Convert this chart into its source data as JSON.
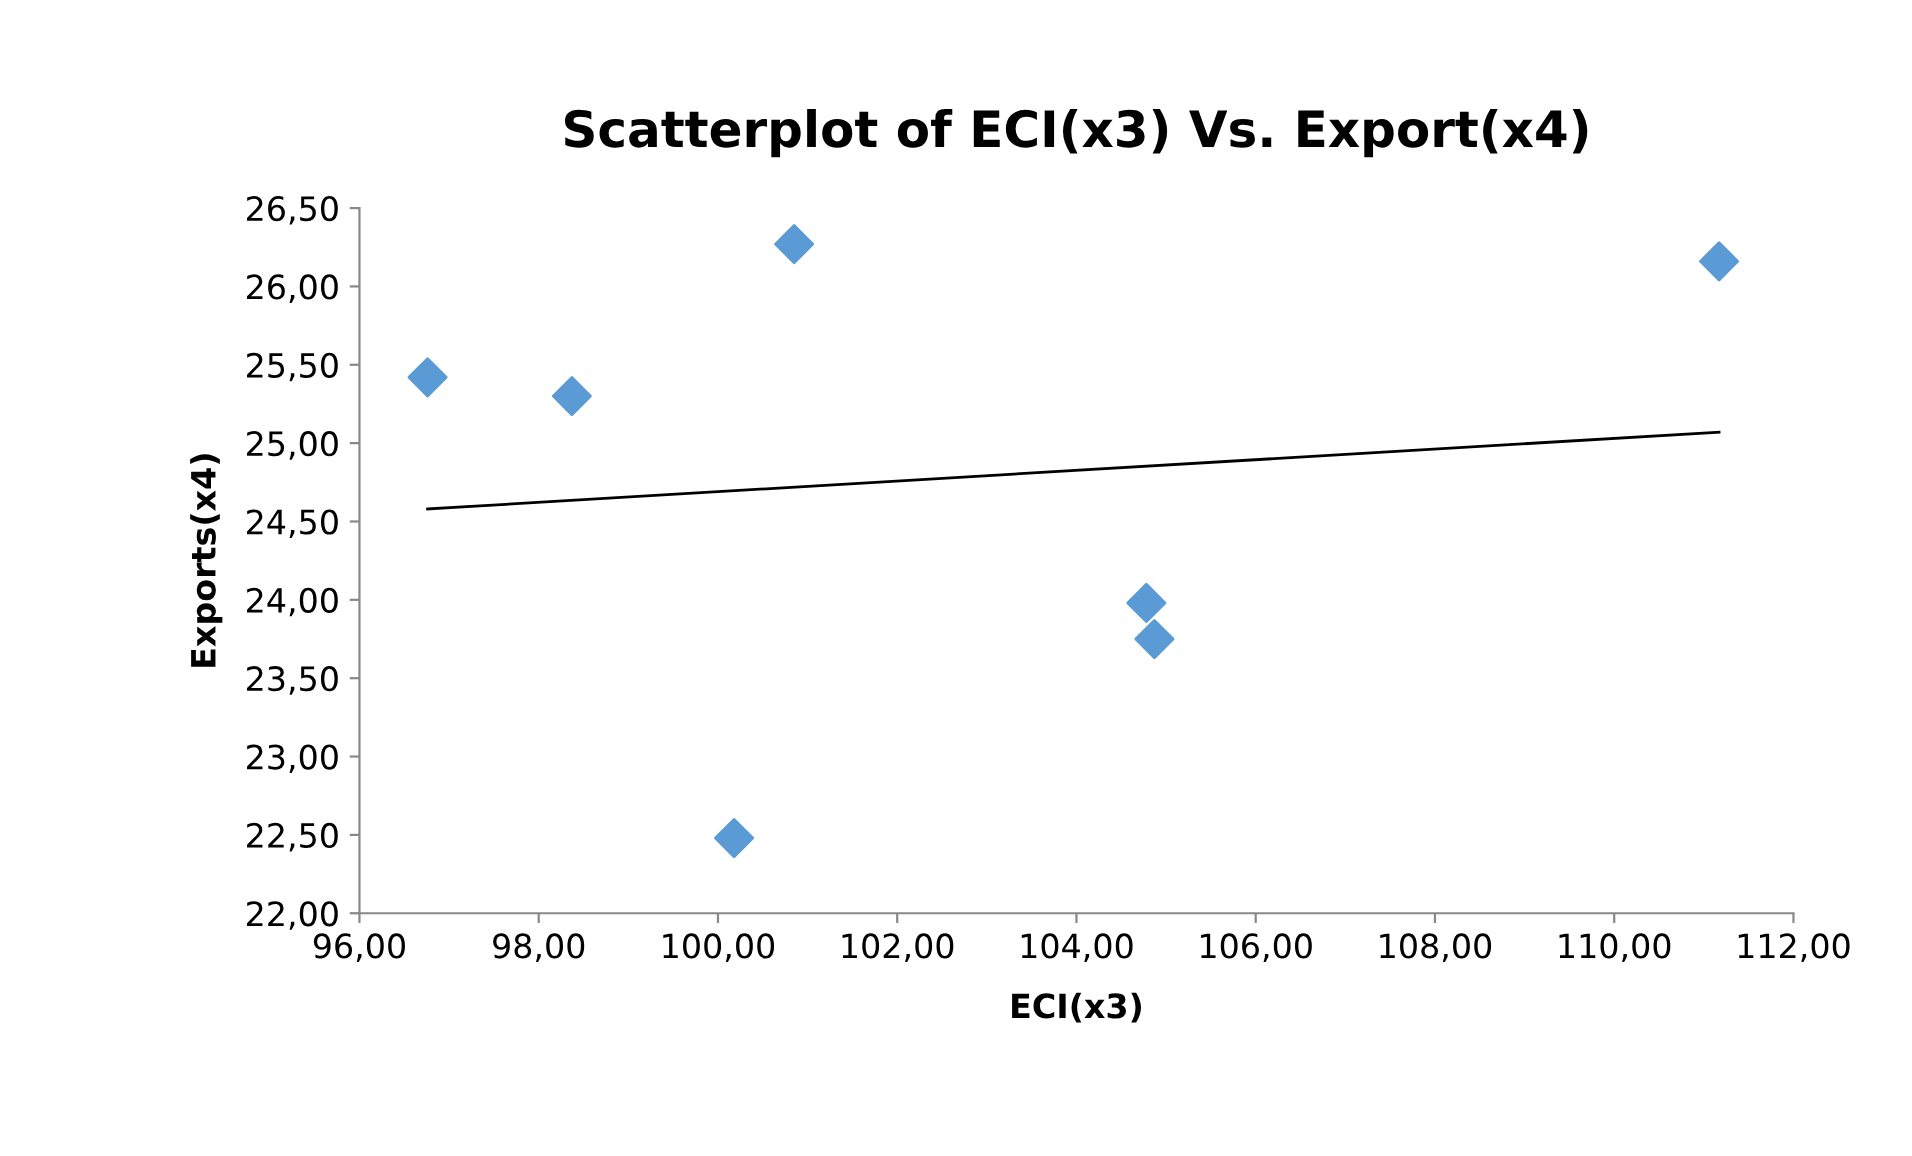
{
  "chart_data": {
    "type": "scatter",
    "title": "Scatterplot of ECI(x3) Vs. Export(x4)",
    "xlabel": "ECI(x3)",
    "ylabel": "Exports(x4)",
    "grid": false,
    "series": [
      {
        "marker": "diamond",
        "color": "#5b9bd5",
        "x": [
          96.76,
          98.37,
          100.85,
          111.17,
          104.78,
          104.87,
          100.18
        ],
        "values": [
          25.42,
          25.3,
          26.27,
          26.16,
          23.98,
          23.75,
          22.48
        ]
      },
      {
        "type": "line",
        "marker": "none",
        "color": "#000000",
        "x": [
          96.76,
          111.17
        ],
        "values": [
          24.58,
          25.07
        ]
      }
    ],
    "xlim": [
      96,
      112
    ],
    "xticks": [
      {
        "value": 96,
        "label": "96,00"
      },
      {
        "value": 98,
        "label": "98,00"
      },
      {
        "value": 100,
        "label": "100,00"
      },
      {
        "value": 102,
        "label": "102,00"
      },
      {
        "value": 104,
        "label": "104,00"
      },
      {
        "value": 106,
        "label": "106,00"
      },
      {
        "value": 108,
        "label": "108,00"
      },
      {
        "value": 110,
        "label": "110,00"
      },
      {
        "value": 112,
        "label": "112,00"
      }
    ],
    "ylim": [
      22,
      26.5
    ],
    "yticks": [
      {
        "value": 22,
        "label": "22,00"
      },
      {
        "value": 22.5,
        "label": "22,50"
      },
      {
        "value": 23,
        "label": "23,00"
      },
      {
        "value": 23.5,
        "label": "23,50"
      },
      {
        "value": 24,
        "label": "24,00"
      },
      {
        "value": 24.5,
        "label": "24,50"
      },
      {
        "value": 25,
        "label": "25,00"
      },
      {
        "value": 25.5,
        "label": "25,50"
      },
      {
        "value": 26,
        "label": "26,00"
      },
      {
        "value": 26.5,
        "label": "26,50"
      }
    ]
  }
}
